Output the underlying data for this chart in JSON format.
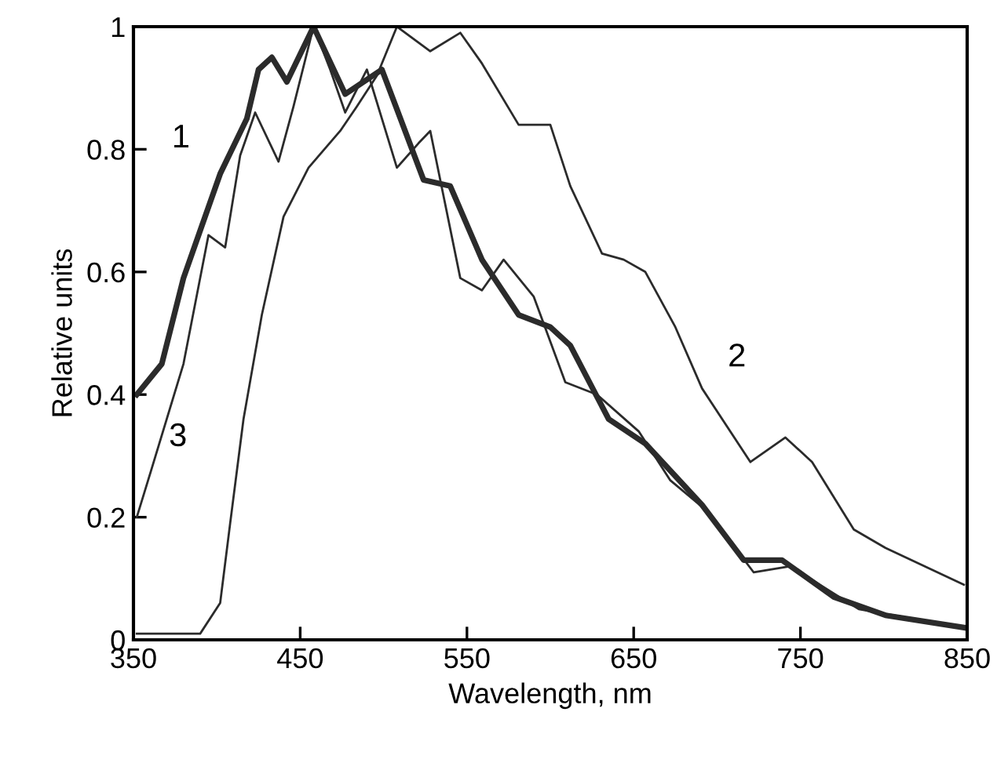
{
  "chart_data": {
    "type": "line",
    "xlabel": "Wavelength, nm",
    "ylabel": "Relative units",
    "xlim": [
      350,
      850
    ],
    "ylim": [
      0,
      1
    ],
    "xticks": [
      350,
      450,
      550,
      650,
      750,
      850
    ],
    "yticks": [
      0,
      0.2,
      0.4,
      0.6,
      0.8,
      1
    ],
    "grid": false,
    "legend": false,
    "marker": "none",
    "line_style": "solid",
    "series": [
      {
        "color": "#2b2b2b",
        "x": [
          352,
          367,
          380,
          402,
          418,
          425,
          433,
          442,
          458,
          477,
          499,
          524,
          540,
          559,
          581,
          600,
          612,
          635,
          657,
          691,
          716,
          739,
          770,
          801,
          848
        ],
        "values": [
          0.4,
          0.45,
          0.59,
          0.76,
          0.85,
          0.93,
          0.95,
          0.91,
          1.0,
          0.89,
          0.93,
          0.75,
          0.74,
          0.62,
          0.53,
          0.51,
          0.48,
          0.36,
          0.32,
          0.22,
          0.13,
          0.13,
          0.07,
          0.04,
          0.02
        ]
      },
      {
        "color": "#2b2b2b",
        "x": [
          352,
          380,
          390,
          402,
          408,
          416,
          427,
          440,
          455,
          474,
          484,
          496,
          508,
          528,
          546,
          559,
          581,
          600,
          612,
          631,
          644,
          657,
          675,
          691,
          720,
          741,
          757,
          782,
          801,
          848
        ],
        "values": [
          0.01,
          0.01,
          0.01,
          0.06,
          0.19,
          0.36,
          0.53,
          0.69,
          0.77,
          0.83,
          0.87,
          0.92,
          1.0,
          0.96,
          0.99,
          0.94,
          0.84,
          0.84,
          0.74,
          0.63,
          0.62,
          0.6,
          0.51,
          0.41,
          0.29,
          0.33,
          0.29,
          0.18,
          0.15,
          0.09
        ]
      },
      {
        "color": "#2b2b2b",
        "x": [
          352,
          361,
          380,
          395,
          405,
          414,
          423,
          437,
          446,
          458,
          468,
          477,
          490,
          508,
          521,
          528,
          546,
          559,
          572,
          590,
          609,
          628,
          653,
          672,
          694,
          722,
          744,
          785,
          848
        ],
        "values": [
          0.2,
          0.28,
          0.45,
          0.66,
          0.64,
          0.79,
          0.86,
          0.78,
          0.87,
          1.0,
          0.93,
          0.86,
          0.93,
          0.77,
          0.81,
          0.83,
          0.59,
          0.57,
          0.62,
          0.56,
          0.42,
          0.4,
          0.34,
          0.26,
          0.21,
          0.11,
          0.12,
          0.05,
          0.02
        ]
      }
    ],
    "annotations": [
      {
        "text": "1",
        "x": 402,
        "y": 0.76
      },
      {
        "text": "2",
        "x": 691,
        "y": 0.41
      },
      {
        "text": "3",
        "x": 361,
        "y": 0.28
      }
    ]
  }
}
